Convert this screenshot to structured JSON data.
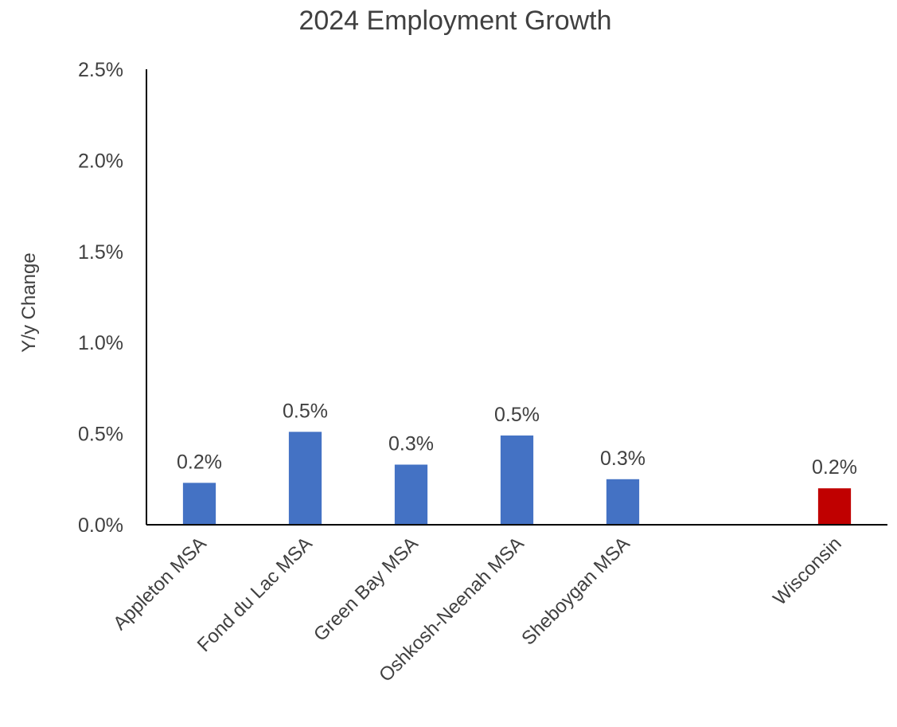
{
  "chart_data": {
    "type": "bar",
    "title": "2024 Employment Growth",
    "xlabel": "",
    "ylabel": "Y/y Change",
    "ylim": [
      0,
      2.5
    ],
    "yticks": [
      "0.0%",
      "0.5%",
      "1.0%",
      "1.5%",
      "2.0%",
      "2.5%"
    ],
    "grid": false,
    "categories": [
      "Appleton MSA",
      "Fond du Lac MSA",
      "Green Bay MSA",
      "Oshkosh-Neenah MSA",
      "Sheboygan MSA",
      "",
      "Wisconsin"
    ],
    "values": [
      0.23,
      0.51,
      0.33,
      0.49,
      0.25,
      null,
      0.2
    ],
    "data_labels": [
      "0.2%",
      "0.5%",
      "0.3%",
      "0.5%",
      "0.3%",
      "",
      "0.2%"
    ],
    "colors": [
      "#4472c4",
      "#4472c4",
      "#4472c4",
      "#4472c4",
      "#4472c4",
      "",
      "#c00000"
    ]
  }
}
